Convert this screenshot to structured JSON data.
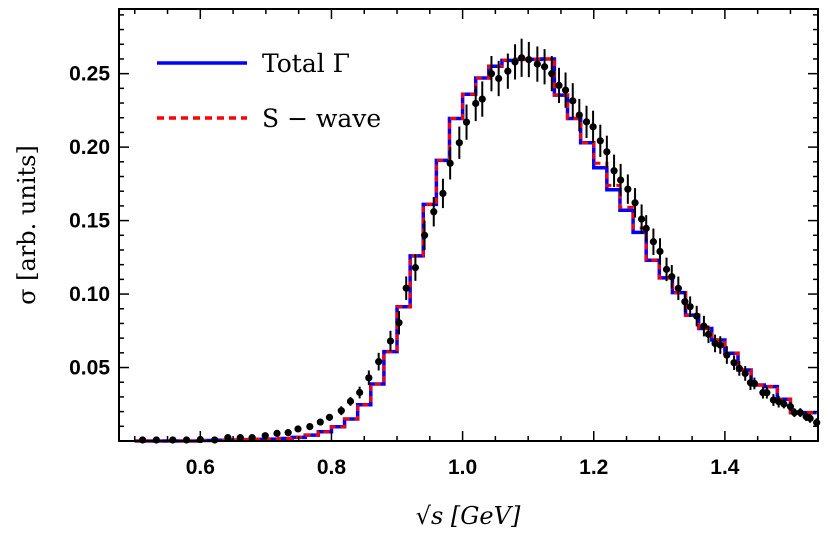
{
  "chart_data": {
    "type": "line",
    "title": "",
    "xlabel": "√s  [GeV]",
    "ylabel": "σ  [arb. units]",
    "xlim": [
      0.476,
      1.542
    ],
    "ylim": [
      0,
      0.294
    ],
    "xticks": [
      0.6,
      0.8,
      1.0,
      1.2,
      1.4
    ],
    "xtick_labels": [
      "0.6",
      "0.8",
      "1.0",
      "1.2",
      "1.4"
    ],
    "yticks": [
      0.05,
      0.1,
      0.15,
      0.2,
      0.25
    ],
    "ytick_labels": [
      "0.05",
      "0.10",
      "0.15",
      "0.20",
      "0.25"
    ],
    "x_minor_step": 0.05,
    "y_minor_step": 0.01,
    "grid": false,
    "legend_position": "top-left",
    "bin_edges_start": 0.5,
    "bin_width": 0.02,
    "series": [
      {
        "name": "Total Γ",
        "style": "step-solid",
        "color": "#0000ff",
        "values": [
          0,
          0,
          0,
          0,
          0,
          0.0003,
          0.0005,
          0.0007,
          0.0009,
          0.0011,
          0.0013,
          0.0017,
          0.0025,
          0.004,
          0.0063,
          0.0097,
          0.015,
          0.0247,
          0.0388,
          0.0608,
          0.0914,
          0.126,
          0.161,
          0.191,
          0.2195,
          0.236,
          0.247,
          0.255,
          0.259,
          0.2597,
          0.2597,
          0.26,
          0.2354,
          0.2195,
          0.203,
          0.186,
          0.171,
          0.157,
          0.142,
          0.123,
          0.111,
          0.101,
          0.0857,
          0.0766,
          0.0687,
          0.0597,
          0.0483,
          0.0381,
          0.037,
          0.0284,
          0.0193,
          0.0193
        ]
      },
      {
        "name": "S − wave",
        "style": "step-dashed",
        "color": "#ff0000",
        "values": [
          0,
          0,
          0,
          0,
          0,
          0.0003,
          0.0005,
          0.0007,
          0.0009,
          0.0011,
          0.0013,
          0.0017,
          0.0025,
          0.004,
          0.0063,
          0.0097,
          0.015,
          0.0247,
          0.0388,
          0.0608,
          0.0914,
          0.126,
          0.161,
          0.191,
          0.2195,
          0.236,
          0.247,
          0.255,
          0.259,
          0.2597,
          0.2597,
          0.26,
          0.2354,
          0.2195,
          0.203,
          0.189,
          0.174,
          0.159,
          0.145,
          0.123,
          0.111,
          0.101,
          0.0857,
          0.0766,
          0.0687,
          0.0597,
          0.0483,
          0.0381,
          0.037,
          0.0284,
          0.0193,
          0.0193
        ]
      },
      {
        "style": "points-errorbars",
        "color": "#000000",
        "x": [
          0.512,
          0.533,
          0.558,
          0.579,
          0.6,
          0.622,
          0.642,
          0.661,
          0.679,
          0.699,
          0.717,
          0.734,
          0.749,
          0.767,
          0.783,
          0.797,
          0.815,
          0.829,
          0.843,
          0.857,
          0.872,
          0.89,
          0.903,
          0.914,
          0.928,
          0.942,
          0.956,
          0.97,
          0.981,
          0.995,
          1.006,
          1.02,
          1.03,
          1.044,
          1.055,
          1.069,
          1.08,
          1.09,
          1.101,
          1.114,
          1.125,
          1.136,
          1.147,
          1.157,
          1.168,
          1.178,
          1.189,
          1.199,
          1.21,
          1.22,
          1.231,
          1.241,
          1.252,
          1.263,
          1.273,
          1.28,
          1.291,
          1.301,
          1.311,
          1.319,
          1.329,
          1.339,
          1.347,
          1.357,
          1.368,
          1.375,
          1.385,
          1.393,
          1.403,
          1.414,
          1.422,
          1.431,
          1.439,
          1.445,
          1.458,
          1.464,
          1.474,
          1.482,
          1.49,
          1.5,
          1.506,
          1.515,
          1.524,
          1.53,
          1.54
        ],
        "y": [
          0.0007,
          0.0007,
          0.0007,
          0.0007,
          0.001,
          0.0007,
          0.0023,
          0.0023,
          0.0023,
          0.0036,
          0.0052,
          0.0057,
          0.0082,
          0.0098,
          0.0129,
          0.0161,
          0.0206,
          0.027,
          0.033,
          0.043,
          0.054,
          0.068,
          0.0805,
          0.104,
          0.118,
          0.14,
          0.156,
          0.1685,
          0.189,
          0.203,
          0.217,
          0.2297,
          0.2327,
          0.25,
          0.2467,
          0.2517,
          0.258,
          0.2608,
          0.2596,
          0.2565,
          0.2547,
          0.25,
          0.242,
          0.2388,
          0.2315,
          0.2218,
          0.2172,
          0.2138,
          0.2043,
          0.1968,
          0.1839,
          0.1776,
          0.1714,
          0.1621,
          0.151,
          0.1447,
          0.1356,
          0.129,
          0.1168,
          0.1118,
          0.1039,
          0.0948,
          0.0914,
          0.085,
          0.0782,
          0.0726,
          0.0664,
          0.0653,
          0.0585,
          0.0533,
          0.0494,
          0.046,
          0.0397,
          0.0392,
          0.0329,
          0.0329,
          0.0279,
          0.0268,
          0.0252,
          0.0234,
          0.0193,
          0.0193,
          0.0166,
          0.0154,
          0.0125
        ],
        "err": [
          0.0005,
          0.0005,
          0.0005,
          0.0005,
          0.002,
          0.0005,
          0.0015,
          0.0015,
          0.0015,
          0.0015,
          0.0015,
          0.0015,
          0.002,
          0.002,
          0.002,
          0.002,
          0.003,
          0.003,
          0.004,
          0.005,
          0.006,
          0.007,
          0.008,
          0.008,
          0.009,
          0.01,
          0.01,
          0.01,
          0.011,
          0.011,
          0.012,
          0.012,
          0.012,
          0.012,
          0.012,
          0.012,
          0.012,
          0.013,
          0.012,
          0.012,
          0.012,
          0.012,
          0.012,
          0.012,
          0.012,
          0.011,
          0.011,
          0.011,
          0.011,
          0.011,
          0.011,
          0.011,
          0.01,
          0.01,
          0.01,
          0.009,
          0.009,
          0.009,
          0.008,
          0.008,
          0.008,
          0.007,
          0.007,
          0.007,
          0.007,
          0.006,
          0.006,
          0.006,
          0.006,
          0.005,
          0.005,
          0.005,
          0.005,
          0.004,
          0.004,
          0.004,
          0.004,
          0.004,
          0.003,
          0.003,
          0.003,
          0.003,
          0.003,
          0.003,
          0.003
        ]
      }
    ]
  }
}
